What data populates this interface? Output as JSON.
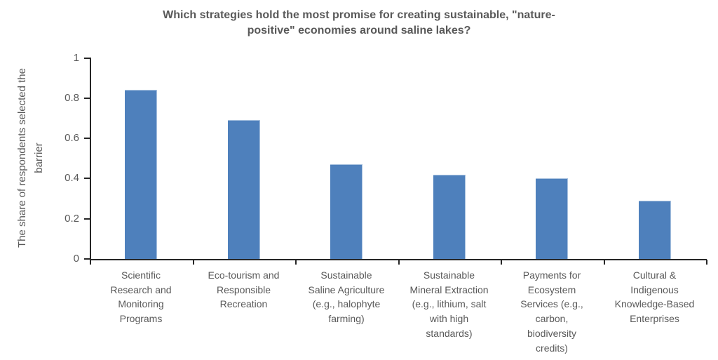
{
  "title": {
    "text": "Which strategies hold the most promise for creating sustainable, \"nature-positive\" economies around saline lakes?",
    "display_lines": [
      "Which strategies hold the most promise for creating sustainable, \"nature-",
      "positive\" economies around saline lakes?"
    ]
  },
  "colors": {
    "bar_fill": "#4E80BC",
    "bar_edge": "#A9C2DF",
    "axis_line": "#262626",
    "text": "#595959",
    "background": "#FFFFFF"
  },
  "chart_data": {
    "type": "bar",
    "title": "Which strategies hold the most promise for creating sustainable, \"nature-positive\" economies around saline lakes?",
    "xlabel": "",
    "ylabel": "The share of respondents selected the barrier",
    "ylabel_display_lines": [
      "The share of respondents selected the",
      "barrier"
    ],
    "categories": [
      "Scientific Research and Monitoring Programs",
      "Eco-tourism and Responsible Recreation",
      "Sustainable Saline Agriculture (e.g., halophyte farming)",
      "Sustainable Mineral Extraction (e.g., lithium, salt with high standards)",
      "Payments for Ecosystem Services (e.g., carbon, biodiversity credits)",
      "Cultural & Indigenous Knowledge-Based Enterprises"
    ],
    "category_display_lines": [
      [
        "Scientific",
        "Research and",
        "Monitoring",
        "Programs"
      ],
      [
        "Eco-tourism and",
        "Responsible",
        "Recreation"
      ],
      [
        "Sustainable",
        "Saline Agriculture",
        "(e.g., halophyte",
        "farming)"
      ],
      [
        "Sustainable",
        "Mineral Extraction",
        "(e.g., lithium, salt",
        "with high",
        "standards)"
      ],
      [
        "Payments for",
        "Ecosystem",
        "Services (e.g.,",
        "carbon,",
        "biodiversity",
        "credits)"
      ],
      [
        "Cultural &",
        "Indigenous",
        "Knowledge-Based",
        "Enterprises"
      ]
    ],
    "category_slugs": [
      "scientific-research-monitoring",
      "eco-tourism-recreation",
      "saline-agriculture",
      "mineral-extraction",
      "ecosystem-service-payments",
      "cultural-indigenous-enterprises"
    ],
    "values": [
      0.84,
      0.69,
      0.47,
      0.42,
      0.4,
      0.29
    ],
    "ylim": [
      0,
      1
    ],
    "yticks": [
      1,
      0.8,
      0.6,
      0.4,
      0.2,
      0
    ],
    "ytick_labels": [
      "1",
      "0.8",
      "0.6",
      "0.4",
      "0.2",
      "0"
    ],
    "grid": false,
    "legend": false,
    "data_labels": false
  }
}
